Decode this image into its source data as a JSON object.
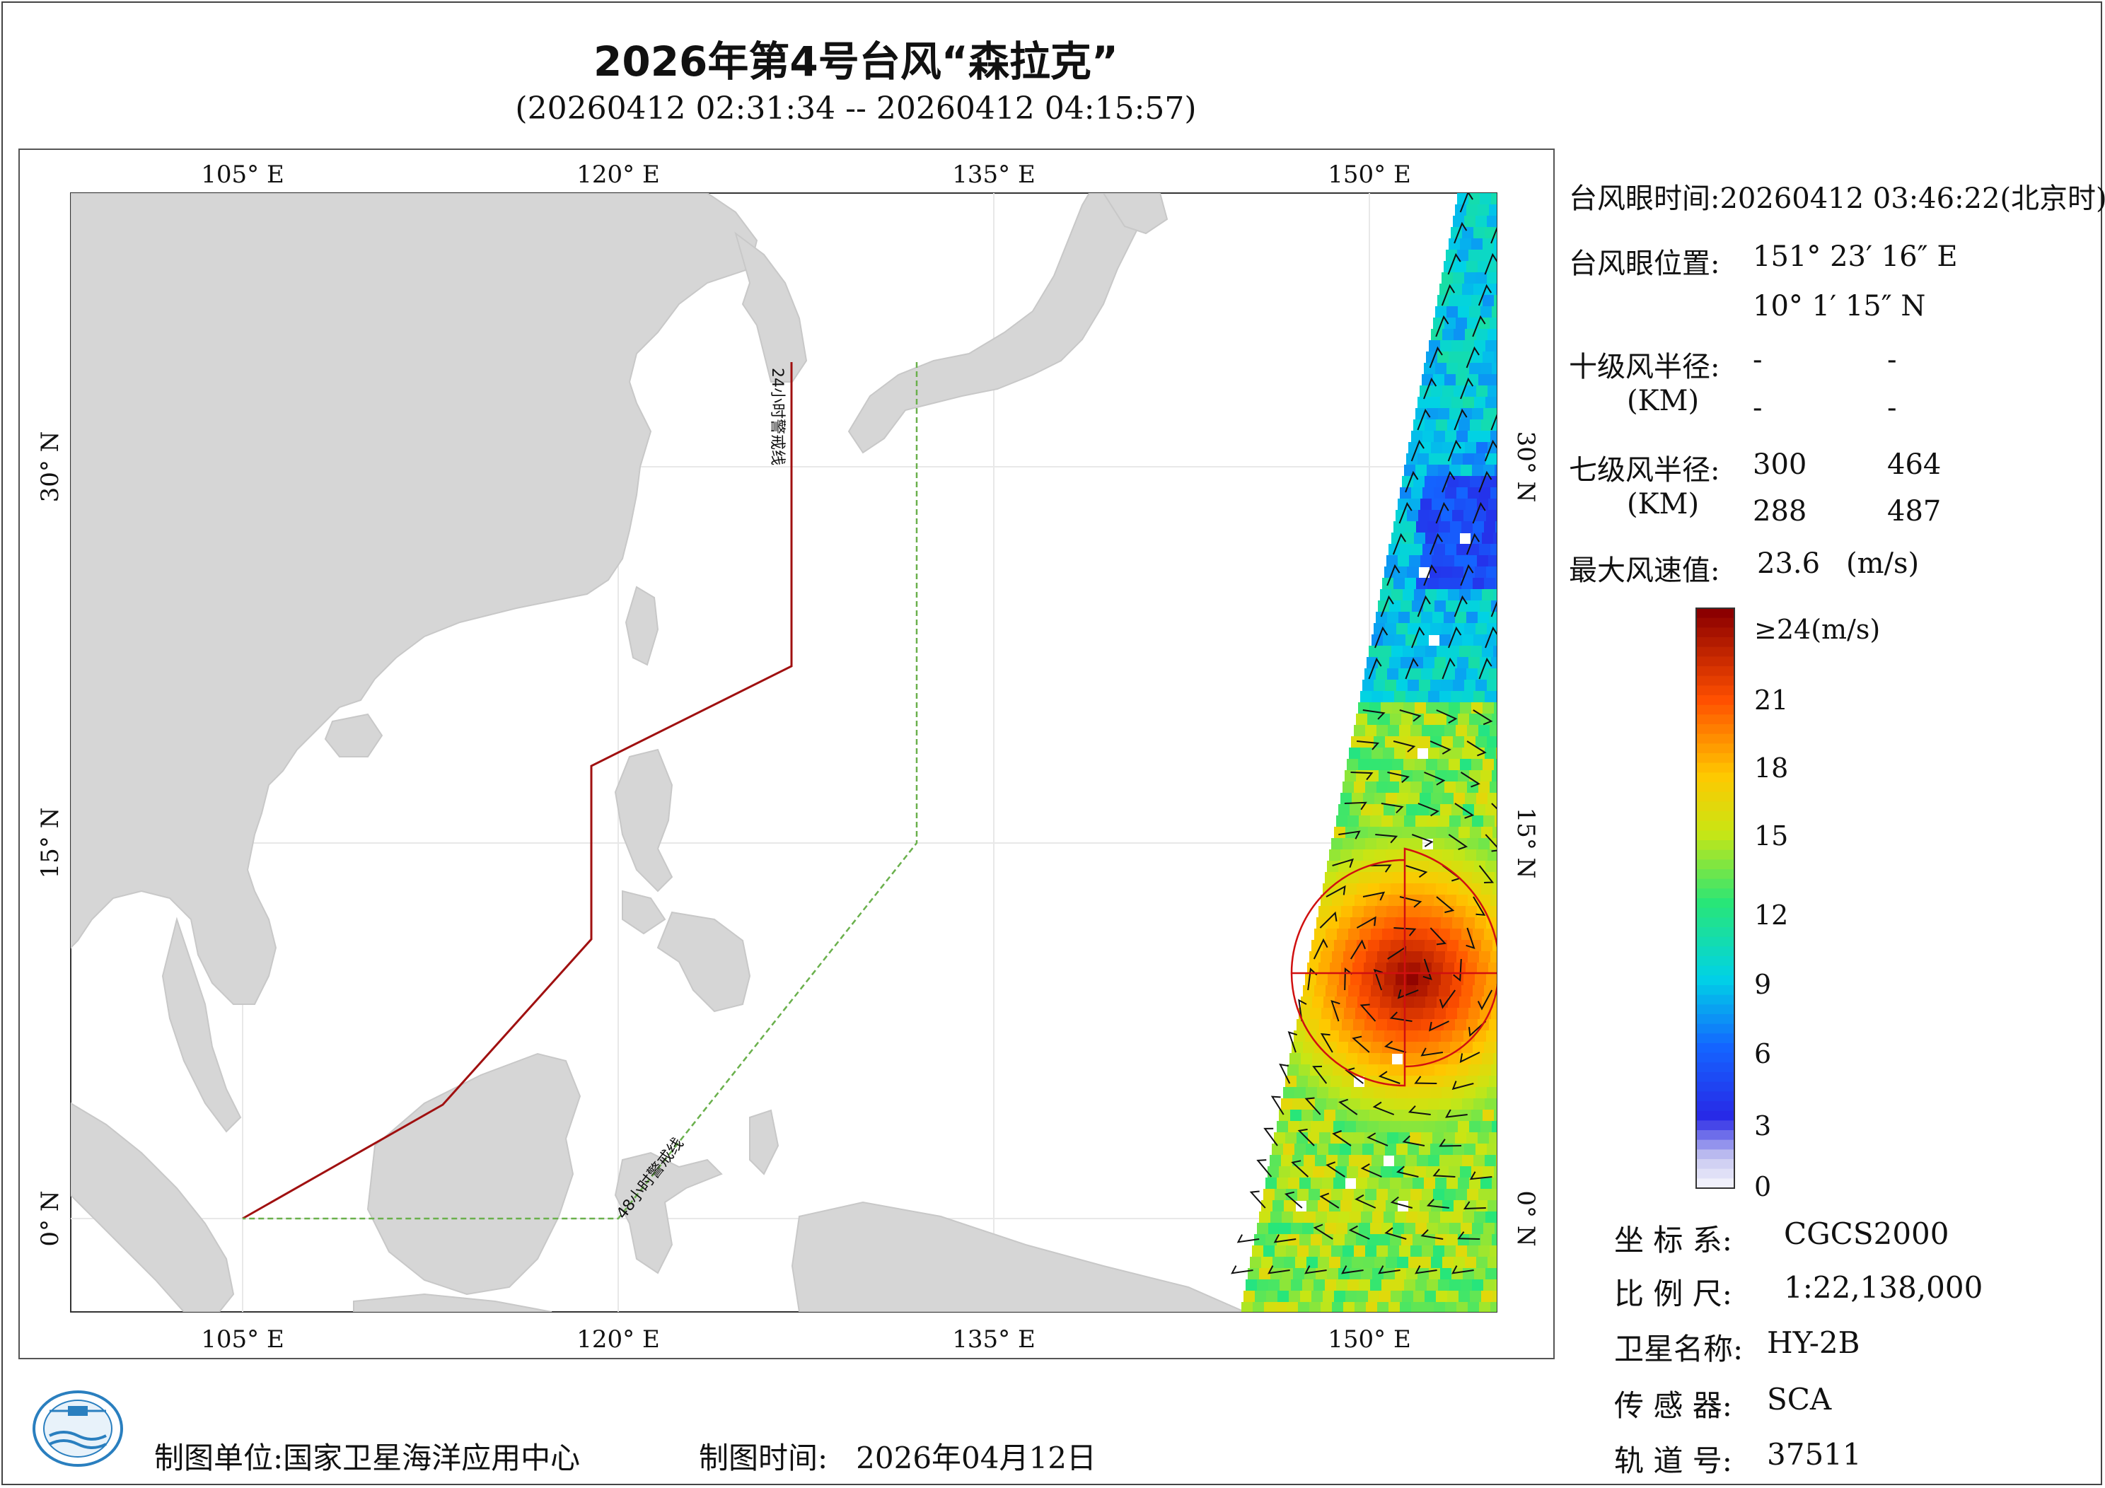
{
  "header": {
    "title": "2026年第4号台风“森拉克”",
    "subtitle": "(20260412 02:31:34 -- 20260412 04:15:57)"
  },
  "map": {
    "lon_ticks": [
      "105° E",
      "120° E",
      "135° E",
      "150° E"
    ],
    "lat_ticks": [
      "30° N",
      "15° N",
      "0° N"
    ],
    "warning_line_24": "24小时警戒线",
    "warning_line_48": "48小时警戒线",
    "colors": {
      "land": "#d6d6d6",
      "sea": "#ffffff",
      "warning_24": "#a01010",
      "warning_48": "#6ab04c",
      "wind_radius": "#d01010"
    }
  },
  "typhoon_info": {
    "eye_time_label": "台风眼时间:",
    "eye_time_value": "20260412 03:46:22(北京时)",
    "eye_pos_label": "台风眼位置:",
    "eye_lon": "151° 23′ 16″ E",
    "eye_lat": "10° 1′ 15″ N",
    "r10_label": "十级风半径:",
    "r10_unit": "(KM)",
    "r10_values": [
      "-",
      "-",
      "-",
      "-"
    ],
    "r7_label": "七级风半径:",
    "r7_unit": "(KM)",
    "r7_values": [
      "300",
      "464",
      "288",
      "487"
    ],
    "max_wind_label": "最大风速值:",
    "max_wind_value": "23.6",
    "max_wind_unit": "(m/s)"
  },
  "colorbar": {
    "top_label": "≥24(m/s)",
    "tick_labels": [
      "21",
      "18",
      "15",
      "12",
      "9",
      "6",
      "3",
      "0"
    ]
  },
  "metadata": {
    "crs_label": "坐 标 系:",
    "crs_value": "CGCS2000",
    "scale_label": "比 例 尺:",
    "scale_value": "1:22,138,000",
    "satellite_label": "卫星名称:",
    "satellite_value": "HY-2B",
    "sensor_label": "传 感 器:",
    "sensor_value": "SCA",
    "orbit_label": "轨 道 号:",
    "orbit_value": "37511"
  },
  "footer": {
    "producer_label": "制图单位:",
    "producer_value": "国家卫星海洋应用中心",
    "date_label": "制图时间:",
    "date_value": "2026年04月12日"
  }
}
